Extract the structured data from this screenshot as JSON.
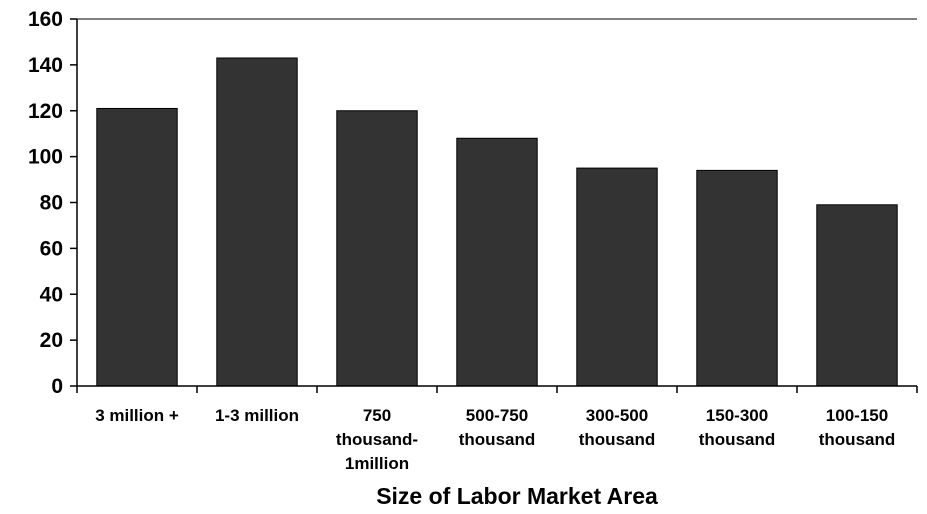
{
  "chart_data": {
    "type": "bar",
    "title": "",
    "xlabel": "Size of Labor Market Area",
    "ylabel": "",
    "ylim": [
      0,
      160
    ],
    "yticks": [
      0,
      20,
      40,
      60,
      80,
      100,
      120,
      140,
      160
    ],
    "grid": false,
    "legend": "none",
    "bar_color": "#333333",
    "categories": [
      [
        "3 million +"
      ],
      [
        "1-3 million"
      ],
      [
        "750",
        "thousand-",
        "1million"
      ],
      [
        "500-750",
        "thousand"
      ],
      [
        "300-500",
        "thousand"
      ],
      [
        "150-300",
        "thousand"
      ],
      [
        "100-150",
        "thousand"
      ]
    ],
    "values": [
      121,
      143,
      120,
      108,
      95,
      94,
      79
    ]
  }
}
